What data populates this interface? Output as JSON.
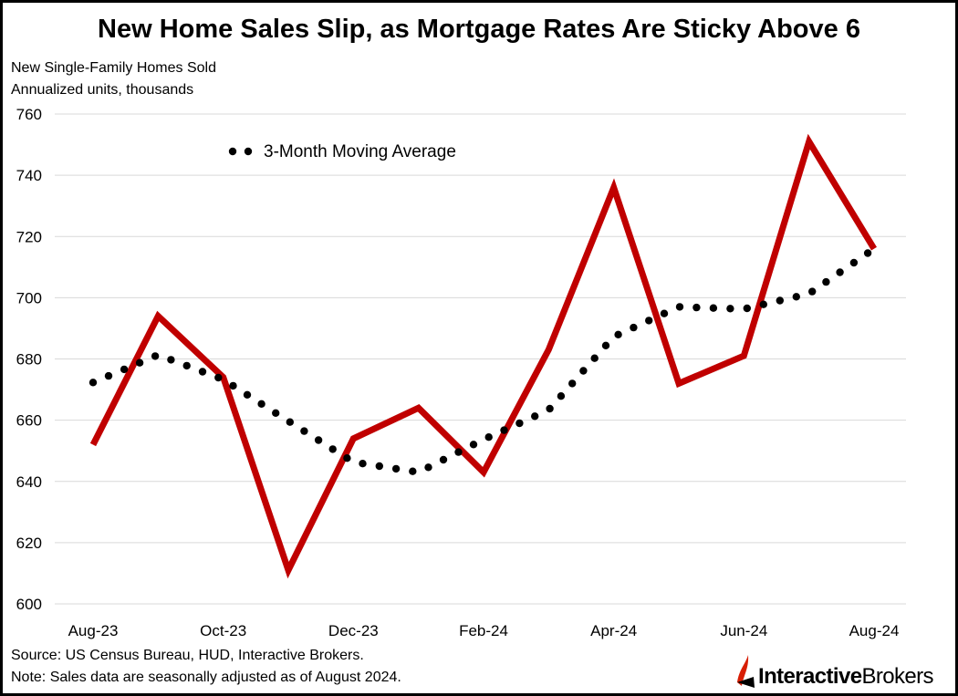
{
  "header": {
    "title": "New Home Sales Slip, as Mortgage Rates Are Sticky Above 6",
    "subtitle_line1": "New Single-Family Homes Sold",
    "subtitle_line2": "Annualized units, thousands"
  },
  "footer": {
    "source": "Source: US Census Bureau, HUD, Interactive Brokers.",
    "note": "Note: Sales data are seasonally adjusted as of August 2024."
  },
  "logo": {
    "text_bold": "Interactive",
    "text_regular": "Brokers",
    "accent_color": "#d81e05"
  },
  "chart_data": {
    "type": "line",
    "title": "New Home Sales Slip, as Mortgage Rates Are Sticky Above 6",
    "ylabel": "New Single-Family Homes Sold, Annualized units, thousands",
    "categories": [
      "Aug-23",
      "Sep-23",
      "Oct-23",
      "Nov-23",
      "Dec-23",
      "Jan-24",
      "Feb-24",
      "Mar-24",
      "Apr-24",
      "May-24",
      "Jun-24",
      "Jul-24",
      "Aug-24"
    ],
    "tick_labels": [
      "Aug-23",
      "Oct-23",
      "Dec-23",
      "Feb-24",
      "Apr-24",
      "Jun-24",
      "Aug-24"
    ],
    "y_ticks": [
      600,
      620,
      640,
      660,
      680,
      700,
      720,
      740,
      760
    ],
    "ylim": [
      600,
      760
    ],
    "grid": true,
    "legend_position": "top-left",
    "series": [
      {
        "values": [
          652,
          694,
          674,
          611,
          654,
          664,
          643,
          683,
          736,
          672,
          681,
          751,
          716
        ],
        "color": "#c00000",
        "style": "solid"
      },
      {
        "name": "3-Month Moving Average",
        "values": [
          672.3,
          681.3,
          673.3,
          659.7,
          646.3,
          643.0,
          653.7,
          663.3,
          687.3,
          697.0,
          696.3,
          701.3,
          716.0
        ],
        "color": "#000000",
        "style": "dotted"
      }
    ]
  }
}
